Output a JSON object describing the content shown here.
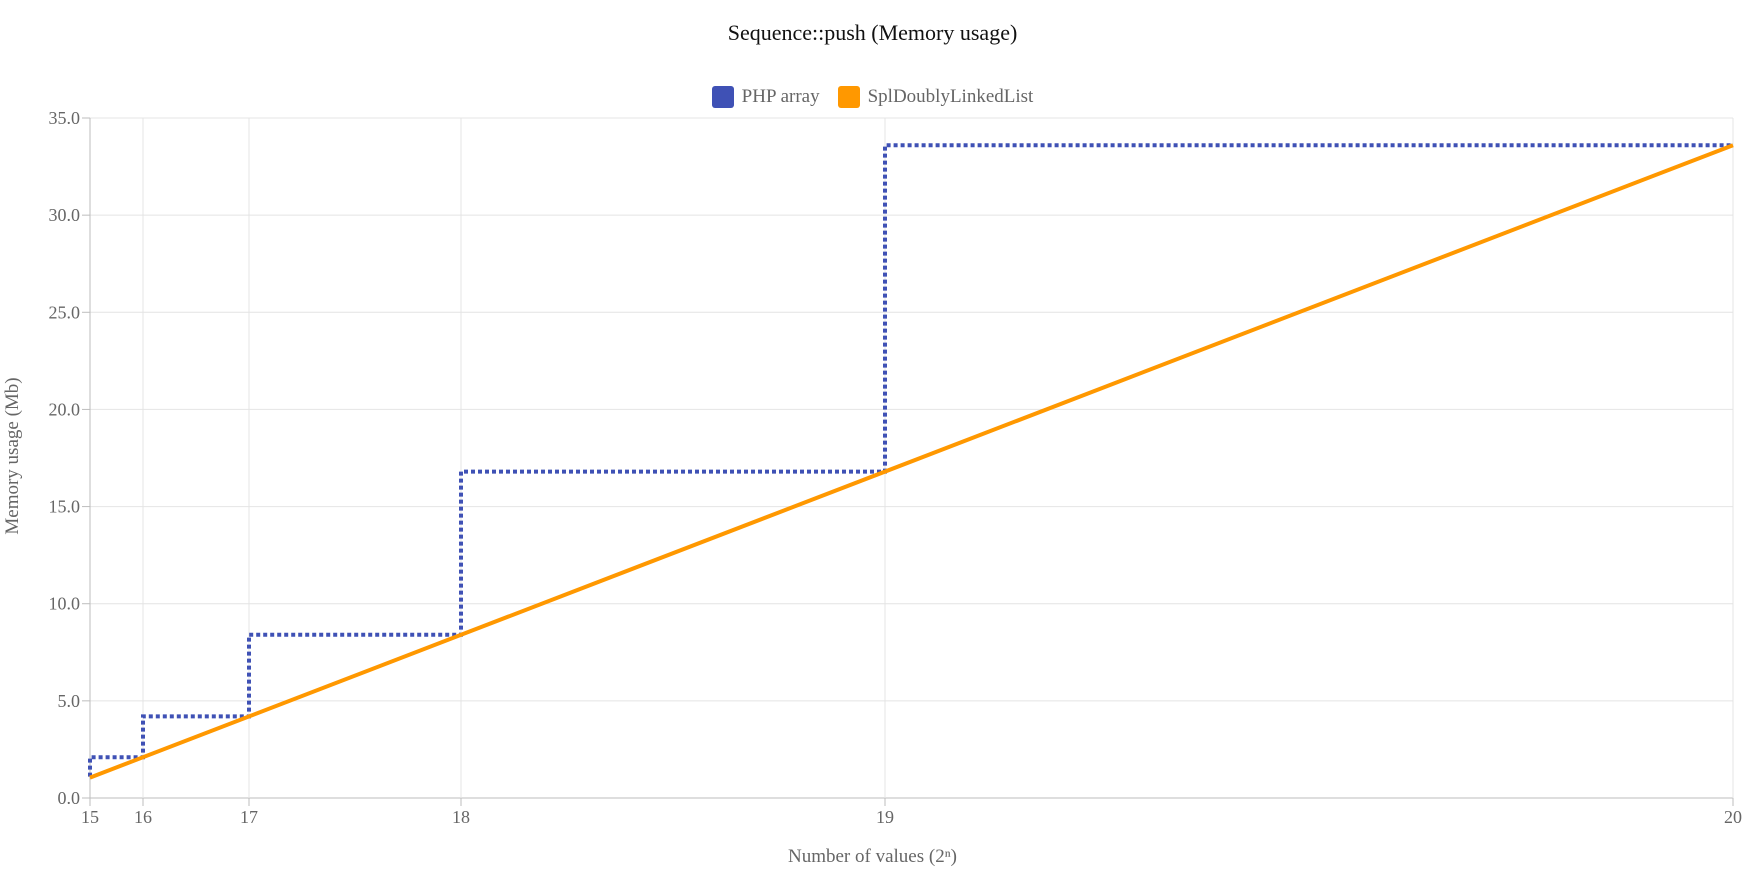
{
  "chart_data": {
    "type": "line",
    "title": "Sequence::push (Memory usage)",
    "xlabel": "Number of values (2ⁿ)",
    "ylabel": "Memory usage (Mb)",
    "xlim": [
      15,
      20
    ],
    "ylim": [
      0,
      35
    ],
    "x_ticks": [
      "15",
      "16",
      "17",
      "18",
      "19",
      "20"
    ],
    "y_ticks": [
      "0.0",
      "5.0",
      "10.0",
      "15.0",
      "20.0",
      "25.0",
      "30.0",
      "35.0"
    ],
    "x_scale": "log2",
    "grid": true,
    "legend_position": "top",
    "series": [
      {
        "name": "PHP array",
        "color": "#3f51b5",
        "style": "dotted-step",
        "points": [
          [
            15,
            1.1
          ],
          [
            15,
            2.1
          ],
          [
            16,
            2.1
          ],
          [
            16,
            4.2
          ],
          [
            17,
            4.2
          ],
          [
            17,
            8.4
          ],
          [
            18,
            8.4
          ],
          [
            18,
            16.8
          ],
          [
            19,
            16.8
          ],
          [
            19,
            33.6
          ],
          [
            20,
            33.6
          ]
        ]
      },
      {
        "name": "SplDoublyLinkedList",
        "color": "#ff9800",
        "style": "solid",
        "points": [
          [
            15,
            1.05
          ],
          [
            20,
            33.6
          ]
        ]
      }
    ]
  }
}
